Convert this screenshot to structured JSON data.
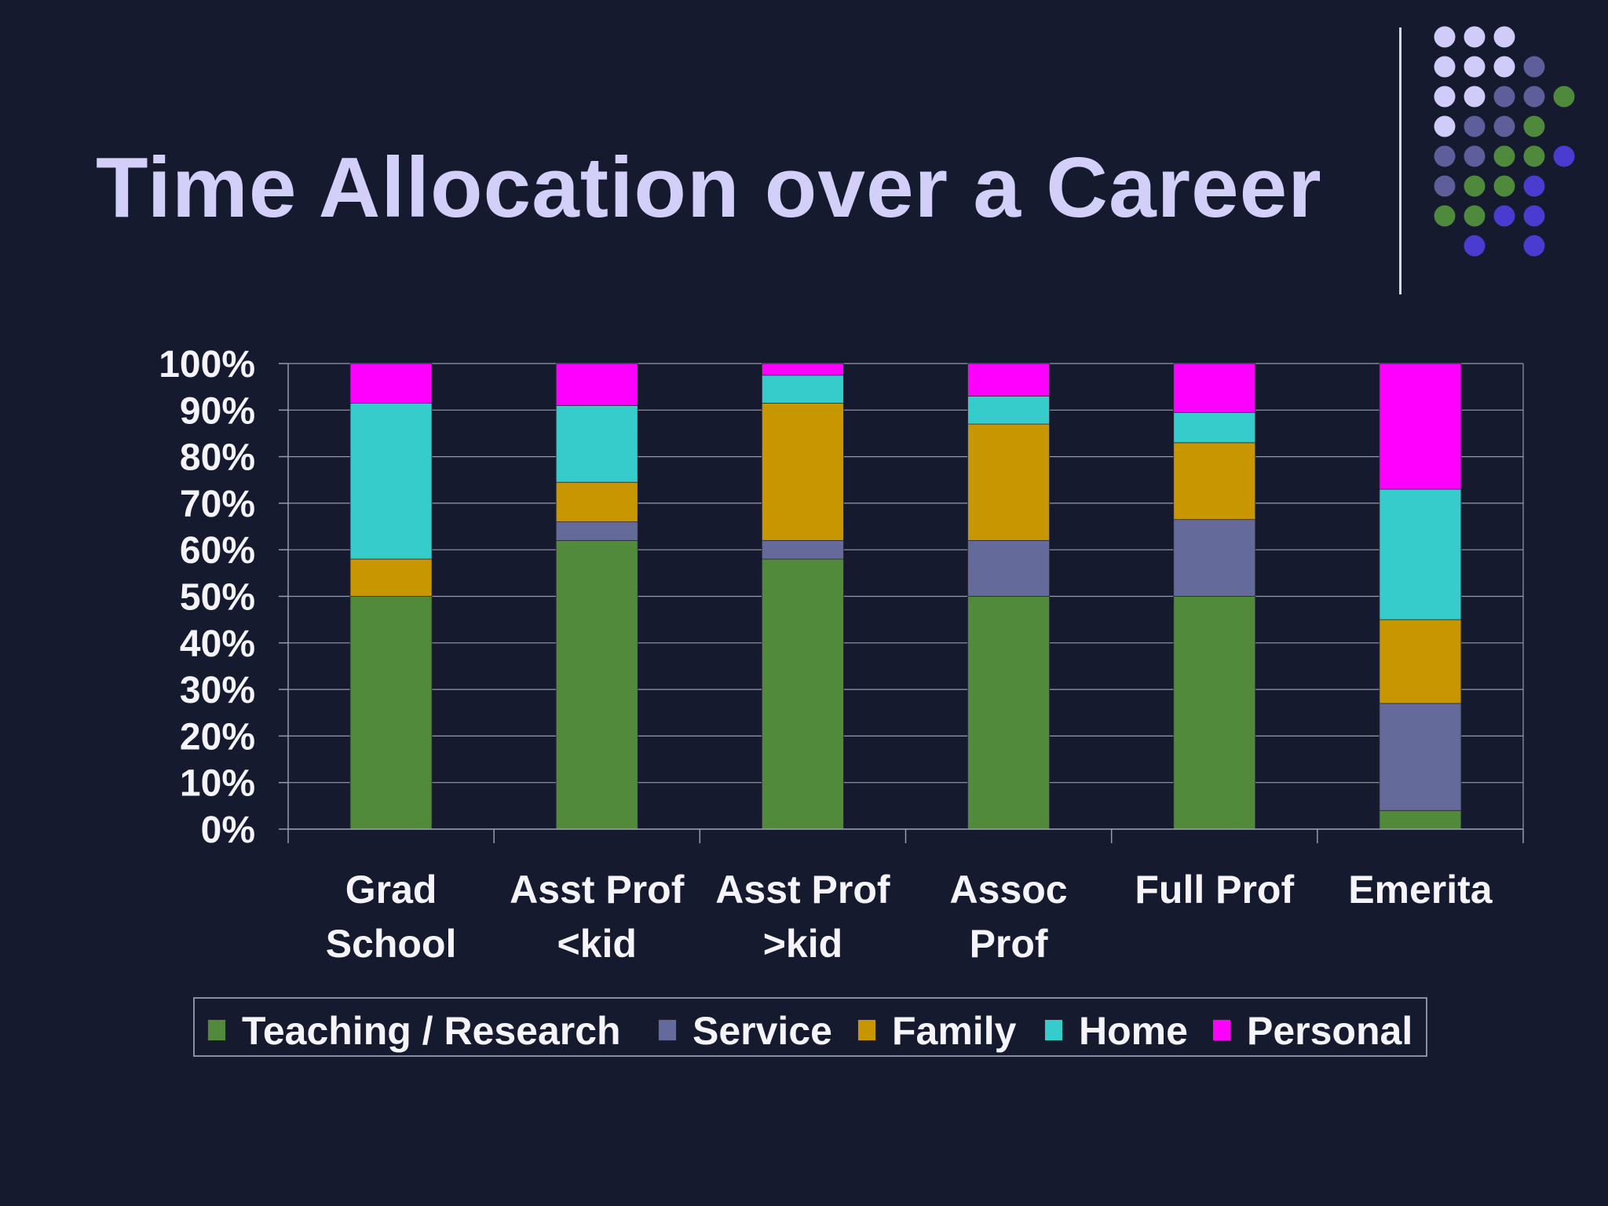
{
  "slide": {
    "title": "Time Allocation over a Career"
  },
  "colors": {
    "background": "#161a2e",
    "title": "#d2d0f8",
    "text": "#f4f4fa",
    "gridline": "#9a9aaa",
    "decor_light": "#cfccf9",
    "decor_slate": "#5e5e9a",
    "decor_green": "#4f8a3c",
    "decor_blue": "#4a3cd0"
  },
  "decor_dots": [
    [
      "light",
      "light",
      "light",
      "",
      "",
      ""
    ],
    [
      "light",
      "light",
      "light",
      "slate",
      "",
      ""
    ],
    [
      "light",
      "light",
      "slate",
      "slate",
      "green",
      ""
    ],
    [
      "light",
      "slate",
      "slate",
      "green",
      "",
      ""
    ],
    [
      "slate",
      "slate",
      "green",
      "green",
      "blue",
      ""
    ],
    [
      "slate",
      "green",
      "green",
      "blue",
      "",
      ""
    ],
    [
      "green",
      "green",
      "blue",
      "blue",
      "",
      ""
    ],
    [
      "",
      "blue",
      "",
      "blue",
      "",
      ""
    ]
  ],
  "chart_data": {
    "type": "bar",
    "stacked": true,
    "percent_stacked": true,
    "title": "",
    "xlabel": "",
    "ylabel": "",
    "ylim": [
      0,
      100
    ],
    "yticks": [
      "0%",
      "10%",
      "20%",
      "30%",
      "40%",
      "50%",
      "60%",
      "70%",
      "80%",
      "90%",
      "100%"
    ],
    "grid": true,
    "legend_position": "bottom",
    "categories": [
      [
        "Grad",
        "School"
      ],
      [
        "Asst Prof",
        "<kid"
      ],
      [
        "Asst Prof",
        ">kid"
      ],
      [
        "Assoc",
        "Prof"
      ],
      [
        "Full Prof"
      ],
      [
        "Emerita"
      ]
    ],
    "series": [
      {
        "name": "Teaching / Research",
        "color": "#508a3a",
        "values": [
          50,
          62,
          58,
          50,
          50,
          4
        ]
      },
      {
        "name": "Service",
        "color": "#646b9a",
        "values": [
          0,
          4,
          4,
          12,
          16.5,
          23
        ]
      },
      {
        "name": "Family",
        "color": "#c89700",
        "values": [
          8,
          8.5,
          29.5,
          25,
          16.5,
          18
        ]
      },
      {
        "name": "Home",
        "color": "#37cccc",
        "values": [
          33.5,
          16.5,
          6,
          6,
          6.5,
          28
        ]
      },
      {
        "name": "Personal",
        "color": "#ff00ff",
        "values": [
          8.5,
          9,
          2.5,
          7,
          10.5,
          27
        ]
      }
    ]
  }
}
